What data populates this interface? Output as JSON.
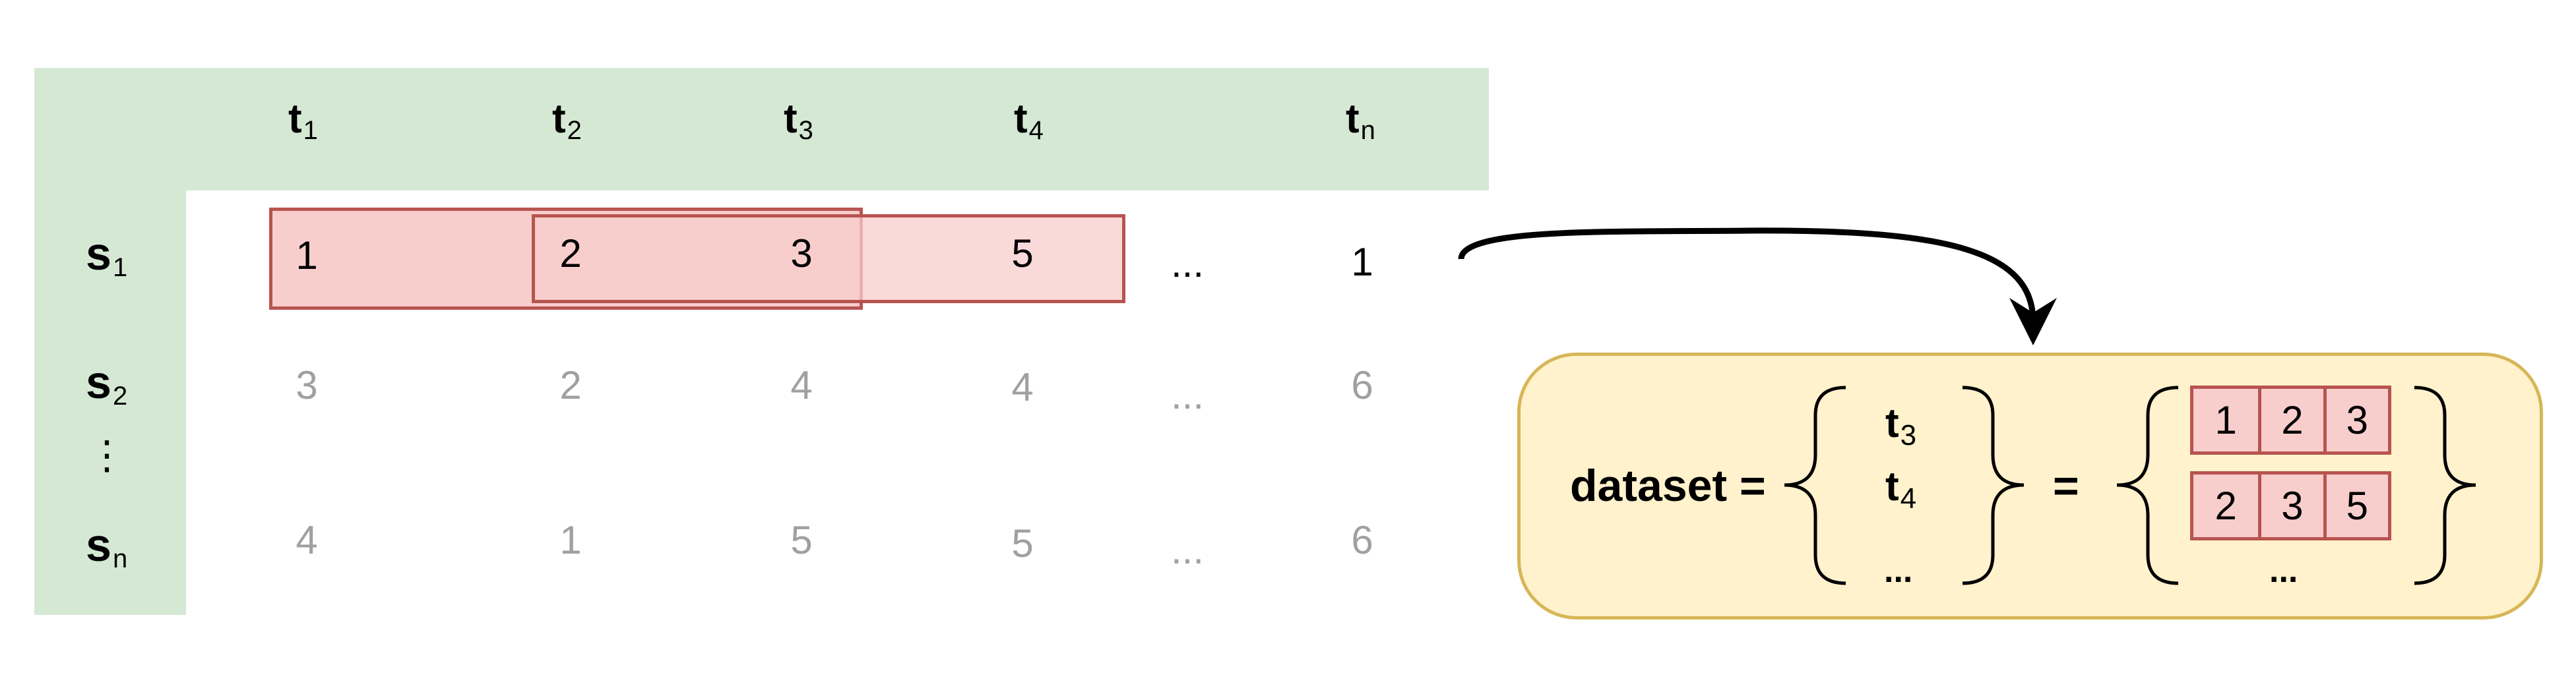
{
  "columns": [
    {
      "base": "t",
      "sub": "1"
    },
    {
      "base": "t",
      "sub": "2"
    },
    {
      "base": "t",
      "sub": "3"
    },
    {
      "base": "t",
      "sub": "4"
    },
    {
      "base": "t",
      "sub": "n"
    }
  ],
  "rows": [
    {
      "base": "s",
      "sub": "1",
      "values": [
        "1",
        "2",
        "3",
        "5",
        "...",
        "1"
      ]
    },
    {
      "base": "s",
      "sub": "2",
      "values": [
        "3",
        "2",
        "4",
        "4",
        "...",
        "6"
      ]
    },
    {
      "base": "s",
      "sub": "n",
      "values": [
        "4",
        "1",
        "5",
        "5",
        "...",
        "6"
      ]
    }
  ],
  "row_ellipsis": "⋮",
  "dataset": {
    "label": "dataset =",
    "equals": "=",
    "targets": [
      {
        "base": "t",
        "sub": "3"
      },
      {
        "base": "t",
        "sub": "4"
      }
    ],
    "targets_more": "...",
    "windows": [
      [
        "1",
        "2",
        "3"
      ],
      [
        "2",
        "3",
        "5"
      ]
    ],
    "windows_more": "..."
  },
  "colors": {
    "header_band": "#d5e8d4",
    "window_fill": "#f8cecc",
    "window_stroke": "#b85450",
    "panel_fill": "#fff2cc",
    "panel_stroke": "#d6b656",
    "muted_text": "#a0a0a0"
  }
}
